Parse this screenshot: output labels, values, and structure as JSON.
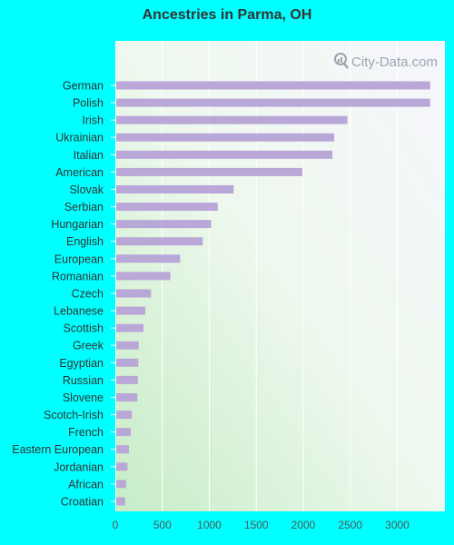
{
  "chart_data": {
    "type": "bar",
    "orientation": "horizontal",
    "title": "Ancestries in Parma, OH",
    "categories": [
      "German",
      "Polish",
      "Irish",
      "Ukrainian",
      "Italian",
      "American",
      "Slovak",
      "Serbian",
      "Hungarian",
      "English",
      "European",
      "Romanian",
      "Czech",
      "Lebanese",
      "Scottish",
      "Greek",
      "Egyptian",
      "Russian",
      "Slovene",
      "Scotch-Irish",
      "French",
      "Eastern European",
      "Jordanian",
      "African",
      "Croatian"
    ],
    "values": [
      3340,
      3340,
      2460,
      2320,
      2300,
      1980,
      1250,
      1080,
      1010,
      920,
      680,
      575,
      370,
      310,
      290,
      240,
      235,
      230,
      225,
      165,
      155,
      135,
      120,
      105,
      95
    ],
    "xticks": [
      "0",
      "500",
      "1000",
      "1500",
      "2000",
      "2500",
      "3000"
    ],
    "xlim": [
      0,
      3500
    ],
    "bar_color": "#b9a7d8",
    "grid": true,
    "watermark": "City-Data.com"
  }
}
